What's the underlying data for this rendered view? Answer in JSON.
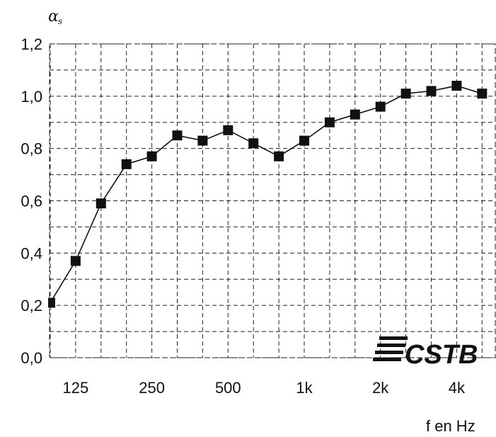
{
  "chart_data": {
    "type": "line",
    "ylabel": "α",
    "ylabel_sub": "s",
    "xlabel": "f en Hz",
    "ylim": [
      0,
      1.2
    ],
    "yticks": [
      "0,0",
      "0,2",
      "0,4",
      "0,6",
      "0,8",
      "1,0",
      "1,2"
    ],
    "ytick_values": [
      0,
      0.2,
      0.4,
      0.6,
      0.8,
      1.0,
      1.2
    ],
    "xticks": [
      "125",
      "250",
      "500",
      "1k",
      "2k",
      "4k"
    ],
    "xtick_index": [
      1,
      4,
      7,
      10,
      13,
      16
    ],
    "x": [
      "100",
      "125",
      "160",
      "200",
      "250",
      "315",
      "400",
      "500",
      "630",
      "800",
      "1000",
      "1250",
      "1600",
      "2000",
      "2500",
      "3150",
      "4000",
      "5000"
    ],
    "series": [
      {
        "values": [
          0.21,
          0.37,
          0.59,
          0.74,
          0.77,
          0.85,
          0.83,
          0.87,
          0.82,
          0.77,
          0.83,
          0.9,
          0.93,
          0.96,
          1.01,
          1.02,
          1.04,
          1.01
        ]
      }
    ],
    "grid": true,
    "logo": "CSTB"
  },
  "colors": {
    "series": "#111111",
    "grid": "#222222",
    "background": "#ffffff"
  }
}
